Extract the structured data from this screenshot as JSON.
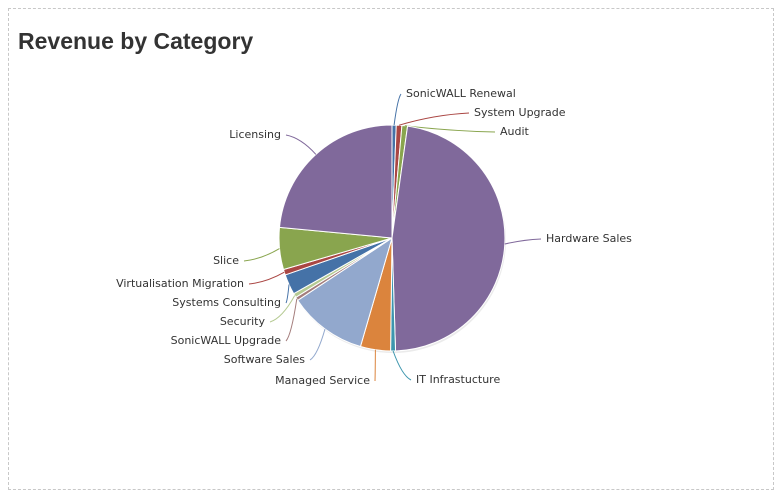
{
  "title": "Revenue by Category",
  "chart_data": {
    "type": "pie",
    "title": "Revenue by Category",
    "slices": [
      {
        "label": "SonicWALL Renewal",
        "value": 0.6,
        "color": "#4572A7"
      },
      {
        "label": "System Upgrade",
        "value": 0.8,
        "color": "#AA4643"
      },
      {
        "label": "Audit",
        "value": 0.8,
        "color": "#89A54E"
      },
      {
        "label": "Hardware Sales",
        "value": 47.3,
        "color": "#80699B"
      },
      {
        "label": "IT Infrastucture",
        "value": 0.7,
        "color": "#3D96AE"
      },
      {
        "label": "Managed Service",
        "value": 4.3,
        "color": "#DB843D"
      },
      {
        "label": "Software Sales",
        "value": 11.2,
        "color": "#92A8CD"
      },
      {
        "label": "SonicWALL Upgrade",
        "value": 0.5,
        "color": "#A47D7C"
      },
      {
        "label": "Security",
        "value": 0.6,
        "color": "#B5CA92"
      },
      {
        "label": "Systems Consulting",
        "value": 2.9,
        "color": "#4572A7"
      },
      {
        "label": "Virtualisation Migration",
        "value": 0.8,
        "color": "#AA4643"
      },
      {
        "label": "Slice",
        "value": 6.0,
        "color": "#89A54E"
      },
      {
        "label": "Licensing",
        "value": 23.5,
        "color": "#80699B"
      }
    ]
  }
}
